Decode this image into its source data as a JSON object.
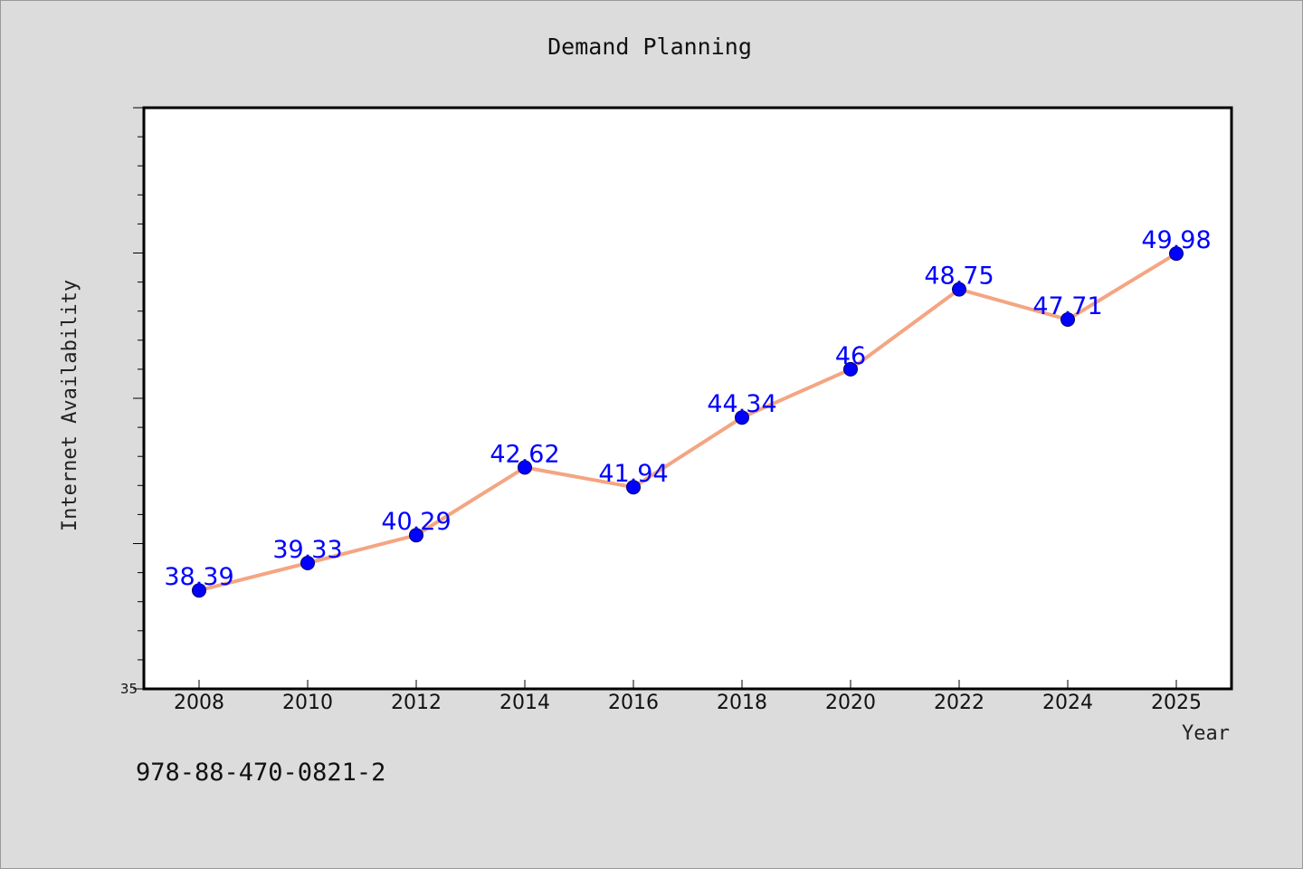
{
  "chart_data": {
    "type": "line",
    "title": "Demand Planning",
    "xlabel": "Year",
    "ylabel": "Internet Availability",
    "categories": [
      "2008",
      "2010",
      "2012",
      "2014",
      "2016",
      "2018",
      "2020",
      "2022",
      "2024",
      "2025"
    ],
    "series": [
      {
        "values": [
          38.39,
          39.33,
          40.29,
          42.62,
          41.94,
          44.34,
          46,
          48.75,
          47.71,
          49.98
        ],
        "point_labels": [
          "38.39",
          "39.33",
          "40.29",
          "42.62",
          "41.94",
          "44.34",
          "46",
          "48.75",
          "47.71",
          "49.98"
        ],
        "line_color": "#f4a582",
        "marker_color": "#0000ff",
        "label_color": "#0000ff"
      }
    ],
    "ylim": [
      35,
      55
    ],
    "yticks_labeled": [
      "35"
    ],
    "grid": false,
    "legend": "none"
  },
  "footer": {
    "code": "978-88-470-0821-2"
  },
  "colors": {
    "background": "#dcdcdc",
    "plot_background": "#ffffff",
    "axis": "#000000"
  }
}
